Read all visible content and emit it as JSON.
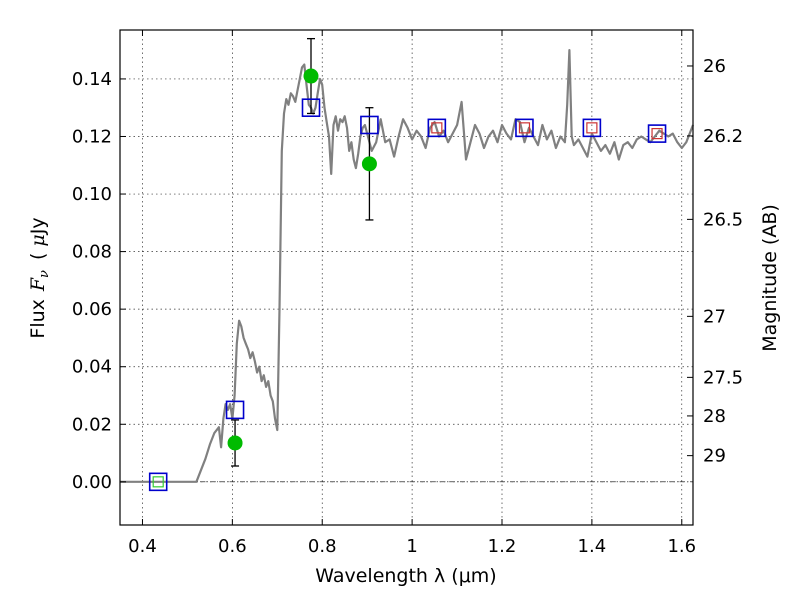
{
  "chart_data": {
    "type": "scatter",
    "xlabel": "Wavelength  λ (μm)",
    "ylabel": "Flux  F_ν  ( μJy )",
    "ylabel_parts": {
      "prefix": "Flux",
      "var": "F",
      "sub": "ν",
      "paren_open": "(",
      "mu": "μ",
      "unit": "Jy",
      "paren_close": ")"
    },
    "y2label": "Magnitude (AB)",
    "xlim": [
      0.35,
      1.625
    ],
    "ylim": [
      -0.015,
      0.157
    ],
    "x_ticks": [
      0.4,
      0.6,
      0.8,
      1.0,
      1.2,
      1.4,
      1.6
    ],
    "x_tick_labels": [
      "0.4",
      "0.6",
      "0.8",
      "1",
      "1.2",
      "1.4",
      "1.6"
    ],
    "y_ticks": [
      0.0,
      0.02,
      0.04,
      0.06,
      0.08,
      0.1,
      0.12,
      0.14
    ],
    "y_tick_labels": [
      "0.00",
      "0.02",
      "0.04",
      "0.06",
      "0.08",
      "0.10",
      "0.12",
      "0.14"
    ],
    "y2_ticks": [
      {
        "label": "26",
        "flux": 0.1445
      },
      {
        "label": "26.2",
        "flux": 0.1202
      },
      {
        "label": "26.5",
        "flux": 0.0912
      },
      {
        "label": "27",
        "flux": 0.0575
      },
      {
        "label": "27.5",
        "flux": 0.0363
      },
      {
        "label": "28",
        "flux": 0.0229
      },
      {
        "label": "29",
        "flux": 0.0091
      }
    ],
    "grid": true,
    "zero_line": true,
    "series": [
      {
        "kind": "line",
        "color": "#808080",
        "x": [
          0.35,
          0.52,
          0.53,
          0.54,
          0.55,
          0.56,
          0.57,
          0.575,
          0.58,
          0.585,
          0.59,
          0.595,
          0.6,
          0.605,
          0.61,
          0.615,
          0.62,
          0.625,
          0.63,
          0.635,
          0.64,
          0.645,
          0.65,
          0.655,
          0.66,
          0.665,
          0.67,
          0.675,
          0.68,
          0.685,
          0.69,
          0.695,
          0.7,
          0.705,
          0.71,
          0.715,
          0.72,
          0.725,
          0.73,
          0.735,
          0.74,
          0.745,
          0.75,
          0.755,
          0.76,
          0.765,
          0.77,
          0.775,
          0.78,
          0.785,
          0.79,
          0.795,
          0.8,
          0.805,
          0.81,
          0.815,
          0.82,
          0.825,
          0.83,
          0.835,
          0.84,
          0.845,
          0.85,
          0.855,
          0.86,
          0.865,
          0.87,
          0.875,
          0.88,
          0.885,
          0.89,
          0.895,
          0.9,
          0.91,
          0.92,
          0.93,
          0.94,
          0.95,
          0.96,
          0.97,
          0.98,
          0.99,
          1.0,
          1.01,
          1.02,
          1.03,
          1.04,
          1.05,
          1.06,
          1.07,
          1.08,
          1.09,
          1.1,
          1.11,
          1.12,
          1.13,
          1.14,
          1.15,
          1.16,
          1.17,
          1.18,
          1.19,
          1.2,
          1.21,
          1.22,
          1.23,
          1.24,
          1.25,
          1.26,
          1.27,
          1.28,
          1.29,
          1.3,
          1.31,
          1.32,
          1.33,
          1.34,
          1.345,
          1.35,
          1.355,
          1.36,
          1.37,
          1.38,
          1.39,
          1.4,
          1.41,
          1.42,
          1.43,
          1.44,
          1.45,
          1.46,
          1.47,
          1.48,
          1.49,
          1.5,
          1.51,
          1.52,
          1.53,
          1.54,
          1.55,
          1.56,
          1.57,
          1.58,
          1.59,
          1.6,
          1.61,
          1.62,
          1.625
        ],
        "y": [
          0.0,
          0.0,
          0.004,
          0.008,
          0.013,
          0.017,
          0.019,
          0.012,
          0.022,
          0.027,
          0.025,
          0.027,
          0.022,
          0.03,
          0.048,
          0.056,
          0.054,
          0.05,
          0.048,
          0.046,
          0.043,
          0.045,
          0.042,
          0.038,
          0.04,
          0.035,
          0.037,
          0.033,
          0.035,
          0.03,
          0.028,
          0.022,
          0.018,
          0.06,
          0.115,
          0.128,
          0.133,
          0.131,
          0.135,
          0.134,
          0.132,
          0.136,
          0.14,
          0.144,
          0.145,
          0.138,
          0.131,
          0.13,
          0.128,
          0.13,
          0.135,
          0.14,
          0.138,
          0.13,
          0.125,
          0.12,
          0.107,
          0.124,
          0.127,
          0.122,
          0.126,
          0.125,
          0.127,
          0.123,
          0.115,
          0.118,
          0.112,
          0.109,
          0.114,
          0.12,
          0.123,
          0.124,
          0.121,
          0.115,
          0.118,
          0.126,
          0.118,
          0.119,
          0.113,
          0.12,
          0.126,
          0.123,
          0.119,
          0.122,
          0.12,
          0.116,
          0.123,
          0.125,
          0.12,
          0.122,
          0.118,
          0.121,
          0.124,
          0.132,
          0.112,
          0.118,
          0.124,
          0.121,
          0.116,
          0.12,
          0.122,
          0.118,
          0.124,
          0.121,
          0.119,
          0.126,
          0.125,
          0.118,
          0.123,
          0.12,
          0.117,
          0.124,
          0.119,
          0.122,
          0.116,
          0.12,
          0.118,
          0.131,
          0.15,
          0.12,
          0.117,
          0.119,
          0.116,
          0.113,
          0.121,
          0.118,
          0.115,
          0.117,
          0.114,
          0.118,
          0.112,
          0.117,
          0.118,
          0.116,
          0.119,
          0.12,
          0.119,
          0.118,
          0.12,
          0.122,
          0.121,
          0.12,
          0.121,
          0.118,
          0.116,
          0.118,
          0.122,
          0.124
        ]
      },
      {
        "kind": "model-photometry",
        "marker": "square",
        "color": "#0000cc",
        "x": [
          0.435,
          0.606,
          0.775,
          0.905,
          1.055,
          1.25,
          1.4,
          1.545
        ],
        "y": [
          0.0,
          0.025,
          0.13,
          0.124,
          0.123,
          0.123,
          0.123,
          0.121
        ]
      },
      {
        "kind": "inner-square",
        "marker": "square",
        "x": [
          0.435,
          1.055,
          1.25,
          1.4,
          1.545
        ],
        "y": [
          0.0,
          0.123,
          0.123,
          0.123,
          0.121
        ],
        "colors": [
          "#33cc33",
          "#cc3333",
          "#cc3333",
          "#cc3333",
          "#cc3333"
        ]
      },
      {
        "kind": "observed",
        "marker": "circle",
        "color": "#00bb00",
        "x": [
          0.606,
          0.775,
          0.905
        ],
        "y": [
          0.0135,
          0.141,
          0.1105
        ],
        "yerr": [
          0.008,
          0.013,
          0.0195
        ]
      }
    ]
  }
}
